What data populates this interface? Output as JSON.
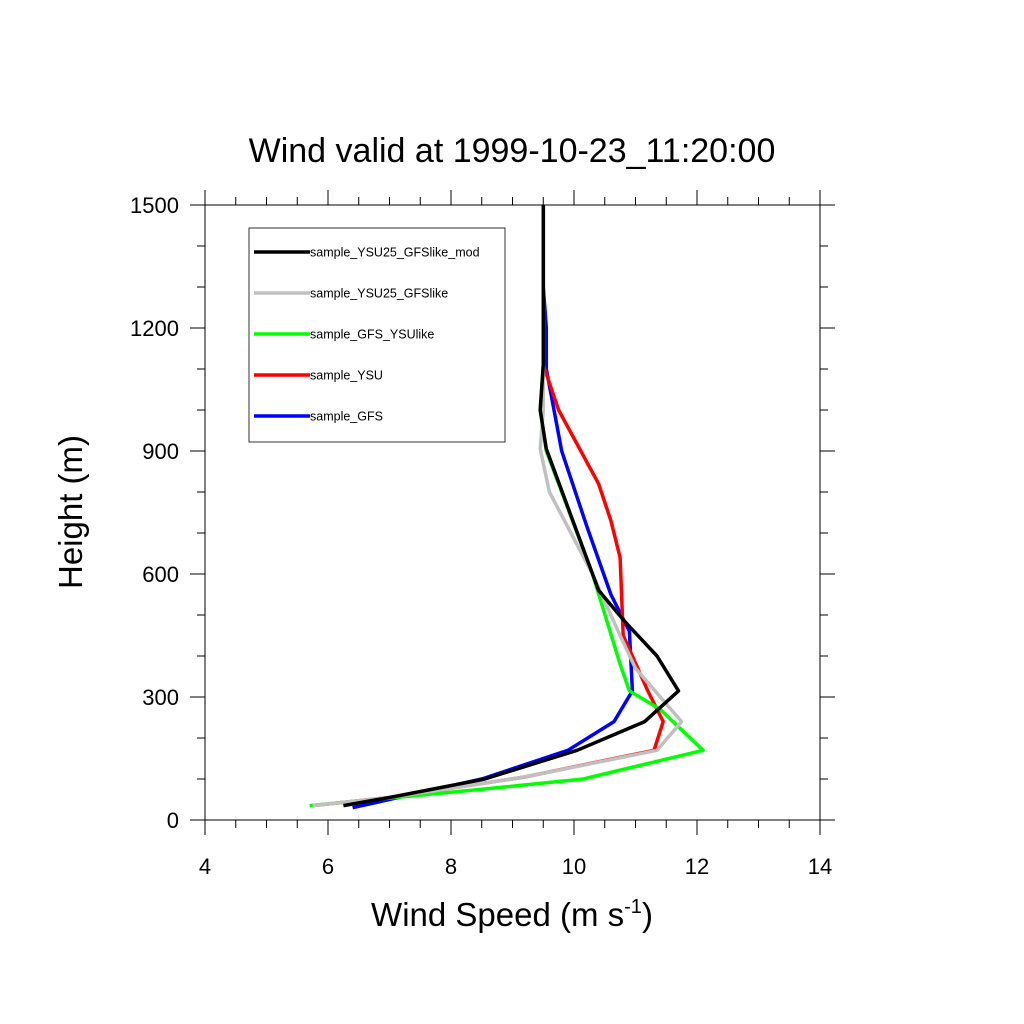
{
  "chart_data": {
    "type": "line",
    "title": "Wind valid at 1999-10-23_11:20:00",
    "xlabel": "Wind Speed (m s",
    "xlabel_sup": "-1",
    "xlabel_end": ")",
    "ylabel": "Height (m)",
    "xlim": [
      4,
      14
    ],
    "ylim": [
      0,
      1500
    ],
    "xticks": [
      4,
      6,
      8,
      10,
      12,
      14
    ],
    "yticks": [
      0,
      300,
      600,
      900,
      1200,
      1500
    ],
    "legend_position": "top-left",
    "series": [
      {
        "name": "sample_YSU25_GFSlike_mod",
        "color": "#000000",
        "x": [
          6.25,
          7.0,
          8.55,
          10.05,
          11.15,
          11.7,
          11.35,
          10.85,
          10.4,
          9.55,
          9.45,
          9.5,
          9.5,
          9.5
        ],
        "y": [
          35,
          55,
          100,
          170,
          240,
          315,
          400,
          480,
          560,
          905,
          1000,
          1110,
          1300,
          1500
        ]
      },
      {
        "name": "sample_YSU25_GFSlike",
        "color": "#c0c0c0",
        "x": [
          5.75,
          7.0,
          9.2,
          11.35,
          11.75,
          11.0,
          10.75,
          10.3,
          9.6,
          9.45,
          9.5,
          9.5,
          9.5
        ],
        "y": [
          35,
          55,
          105,
          170,
          240,
          370,
          450,
          600,
          800,
          905,
          1000,
          1200,
          1500
        ]
      },
      {
        "name": "sample_GFS_YSUlike",
        "color": "#00ff00",
        "x": [
          5.7,
          8.5,
          10.15,
          12.1,
          11.4,
          10.9,
          10.75,
          10.3,
          9.55,
          9.45,
          9.5,
          9.5,
          9.5
        ],
        "y": [
          35,
          75,
          100,
          170,
          270,
          315,
          380,
          600,
          900,
          1000,
          1110,
          1300,
          1500
        ]
      },
      {
        "name": "sample_YSU",
        "color": "#ff0000",
        "x": [
          5.75,
          7.0,
          9.2,
          11.3,
          11.45,
          11.2,
          10.8,
          10.75,
          10.6,
          10.4,
          9.75,
          9.5,
          9.5,
          9.5
        ],
        "y": [
          35,
          55,
          105,
          170,
          240,
          315,
          450,
          640,
          730,
          820,
          1000,
          1110,
          1300,
          1500
        ]
      },
      {
        "name": "sample_GFS",
        "color": "#0000ff",
        "x": [
          6.4,
          8.5,
          9.9,
          10.65,
          10.95,
          10.9,
          10.6,
          10.2,
          9.8,
          9.55,
          9.55,
          9.5
        ],
        "y": [
          30,
          100,
          170,
          240,
          315,
          460,
          550,
          720,
          900,
          1100,
          1200,
          1300
        ]
      }
    ]
  }
}
